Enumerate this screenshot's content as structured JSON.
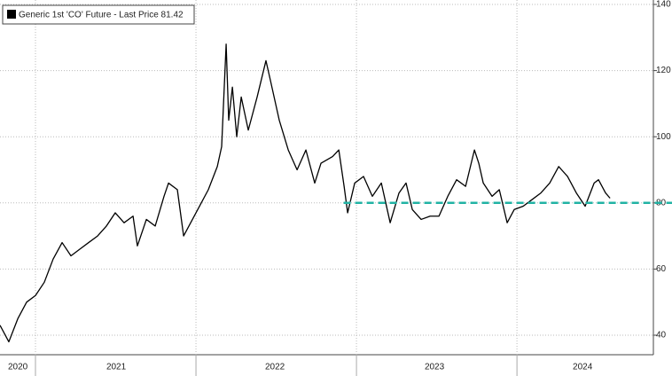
{
  "chart_data": {
    "type": "line",
    "legend": "Generic 1st 'CO' Future - Last Price 81.42",
    "series": [
      {
        "name": "Generic 1st 'CO' Future - Last Price",
        "color": "#000000",
        "x": [
          2020.779,
          2020.834,
          2020.89,
          2020.945,
          2021.0,
          2021.055,
          2021.11,
          2021.166,
          2021.221,
          2021.276,
          2021.331,
          2021.387,
          2021.442,
          2021.497,
          2021.552,
          2021.608,
          2021.635,
          2021.691,
          2021.746,
          2021.801,
          2021.829,
          2021.884,
          2021.923,
          2021.967,
          2022.022,
          2022.077,
          2022.133,
          2022.16,
          2022.188,
          2022.204,
          2022.227,
          2022.254,
          2022.282,
          2022.326,
          2022.381,
          2022.436,
          2022.464,
          2022.519,
          2022.575,
          2022.63,
          2022.685,
          2022.74,
          2022.779,
          2022.851,
          2022.89,
          2022.923,
          2022.945,
          2022.989,
          2023.044,
          2023.099,
          2023.155,
          2023.21,
          2023.265,
          2023.309,
          2023.348,
          2023.403,
          2023.459,
          2023.514,
          2023.569,
          2023.624,
          2023.68,
          2023.735,
          2023.762,
          2023.79,
          2023.845,
          2023.89,
          2023.939,
          2023.983,
          2024.039,
          2024.094,
          2024.149,
          2024.204,
          2024.26,
          2024.315,
          2024.37,
          2024.425,
          2024.481,
          2024.508,
          2024.552,
          2024.58
        ],
        "values": [
          43,
          38,
          45,
          50,
          52,
          56,
          63,
          68,
          64,
          66,
          68,
          70,
          73,
          77,
          74,
          76,
          67,
          75,
          73,
          82,
          86,
          84,
          70,
          74,
          79,
          84,
          91,
          97,
          128,
          105,
          115,
          100,
          112,
          102,
          112,
          123,
          117,
          105,
          96,
          90,
          96,
          86,
          92,
          94,
          96,
          85,
          77,
          86,
          88,
          82,
          86,
          74,
          83,
          86,
          78,
          75,
          76,
          76,
          82,
          87,
          85,
          96,
          92,
          86,
          82,
          84,
          74,
          78,
          79,
          81,
          83,
          86,
          91,
          88,
          83,
          79,
          86,
          87,
          83,
          81.42
        ]
      }
    ],
    "hline": {
      "value": 80,
      "start": 2022.92,
      "color": "#21b3a4"
    },
    "xlim": [
      2020.779,
      2024.85
    ],
    "xticks": [
      {
        "value": 2020.89,
        "label": "2020"
      },
      {
        "value": 2021.503,
        "label": "2021"
      },
      {
        "value": 2022.492,
        "label": "2022"
      },
      {
        "value": 2023.486,
        "label": "2023"
      },
      {
        "value": 2024.409,
        "label": "2024"
      }
    ],
    "ylim": [
      34.1,
      140
    ],
    "yticks": [
      40,
      60,
      80,
      100,
      120,
      140
    ],
    "grid": true
  }
}
